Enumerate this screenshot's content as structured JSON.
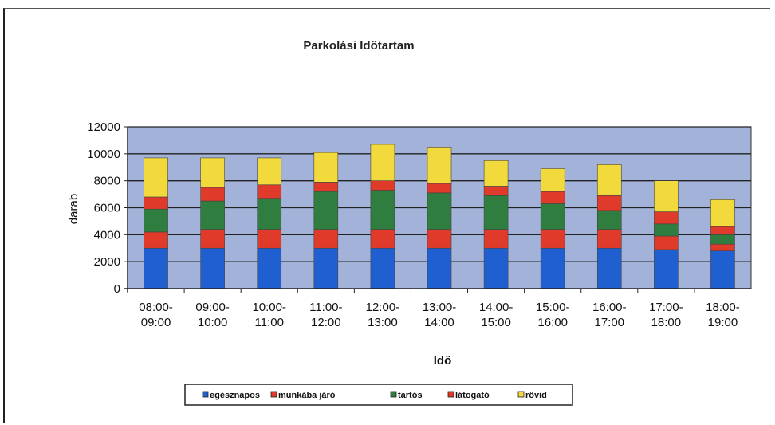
{
  "chart_data": {
    "type": "bar",
    "stacked": true,
    "title": "Parkolási Időtartam",
    "xlabel": "Idő",
    "ylabel": "darab",
    "ylim": [
      0,
      12000
    ],
    "yticks": [
      0,
      2000,
      4000,
      6000,
      8000,
      10000,
      12000
    ],
    "grid": true,
    "legend_position": "bottom",
    "categories": [
      [
        "08:00-",
        "09:00"
      ],
      [
        "09:00-",
        "10:00"
      ],
      [
        "10:00-",
        "11:00"
      ],
      [
        "11:00-",
        "12:00"
      ],
      [
        "12:00-",
        "13:00"
      ],
      [
        "13:00-",
        "14:00"
      ],
      [
        "14:00-",
        "15:00"
      ],
      [
        "15:00-",
        "16:00"
      ],
      [
        "16:00-",
        "17:00"
      ],
      [
        "17:00-",
        "18:00"
      ],
      [
        "18:00-",
        "19:00"
      ]
    ],
    "series": [
      {
        "name": "egésznapos",
        "color": "#1f5fcf",
        "values": [
          3000,
          3000,
          3000,
          3000,
          3000,
          3000,
          3000,
          3000,
          3000,
          2900,
          2800
        ]
      },
      {
        "name": "munkába járó",
        "color": "#e03a2a",
        "values": [
          1200,
          1400,
          1400,
          1400,
          1400,
          1400,
          1400,
          1400,
          1400,
          1000,
          500
        ]
      },
      {
        "name": "tartós",
        "color": "#2f7d3f",
        "values": [
          1700,
          2100,
          2300,
          2800,
          2900,
          2700,
          2500,
          1900,
          1400,
          900,
          700
        ]
      },
      {
        "name": "látogató",
        "color": "#e03a2a",
        "values": [
          900,
          1000,
          1000,
          700,
          700,
          700,
          700,
          900,
          1100,
          900,
          600
        ]
      },
      {
        "name": "rövid",
        "color": "#f2da3c",
        "values": [
          2900,
          2200,
          2000,
          2200,
          2700,
          2700,
          1900,
          1700,
          2300,
          2300,
          2000
        ]
      }
    ]
  }
}
